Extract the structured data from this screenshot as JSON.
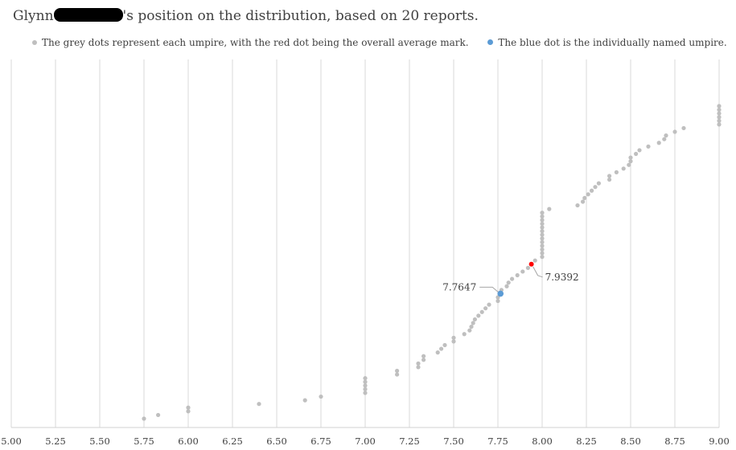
{
  "title": {
    "prefix": "Glynn",
    "suffix": "'s position on the distribution, based on 20 reports."
  },
  "legend": {
    "grey": "The grey dots represent each umpire, with the red dot being the overall average mark.",
    "blue": "The blue dot is the individually named umpire."
  },
  "colors": {
    "grey": "#bfbfbf",
    "red": "#ff0000",
    "blue": "#5b9bd5",
    "grid": "#d9d9d9"
  },
  "chart_data": {
    "type": "scatter",
    "xlim": [
      5.0,
      9.0
    ],
    "x_ticks": [
      "5.00",
      "5.25",
      "5.50",
      "5.75",
      "6.00",
      "6.25",
      "6.50",
      "6.75",
      "7.00",
      "7.25",
      "7.50",
      "7.75",
      "8.00",
      "8.25",
      "8.50",
      "8.75",
      "9.00"
    ],
    "grid": "vertical",
    "grey_x": [
      5.75,
      5.83,
      6.0,
      6.0,
      6.4,
      6.66,
      6.75,
      7.0,
      7.0,
      7.0,
      7.0,
      7.0,
      7.18,
      7.18,
      7.3,
      7.3,
      7.33,
      7.33,
      7.41,
      7.43,
      7.45,
      7.5,
      7.5,
      7.56,
      7.59,
      7.6,
      7.61,
      7.62,
      7.64,
      7.66,
      7.68,
      7.7,
      7.75,
      7.75,
      7.77,
      7.8,
      7.81,
      7.83,
      7.86,
      7.89,
      7.92,
      7.96,
      8.0,
      8.0,
      8.0,
      8.0,
      8.0,
      8.0,
      8.0,
      8.0,
      8.0,
      8.0,
      8.0,
      8.0,
      8.0,
      8.04,
      8.2,
      8.23,
      8.24,
      8.26,
      8.28,
      8.3,
      8.32,
      8.38,
      8.38,
      8.42,
      8.46,
      8.49,
      8.5,
      8.5,
      8.53,
      8.55,
      8.6,
      8.66,
      8.69,
      8.7,
      8.75,
      8.8,
      9.0,
      9.0,
      9.0,
      9.0,
      9.0,
      9.0
    ],
    "average": {
      "x": 7.9392,
      "label": "7.9392"
    },
    "named_umpire": {
      "x": 7.7647,
      "label": "7.7647"
    }
  }
}
